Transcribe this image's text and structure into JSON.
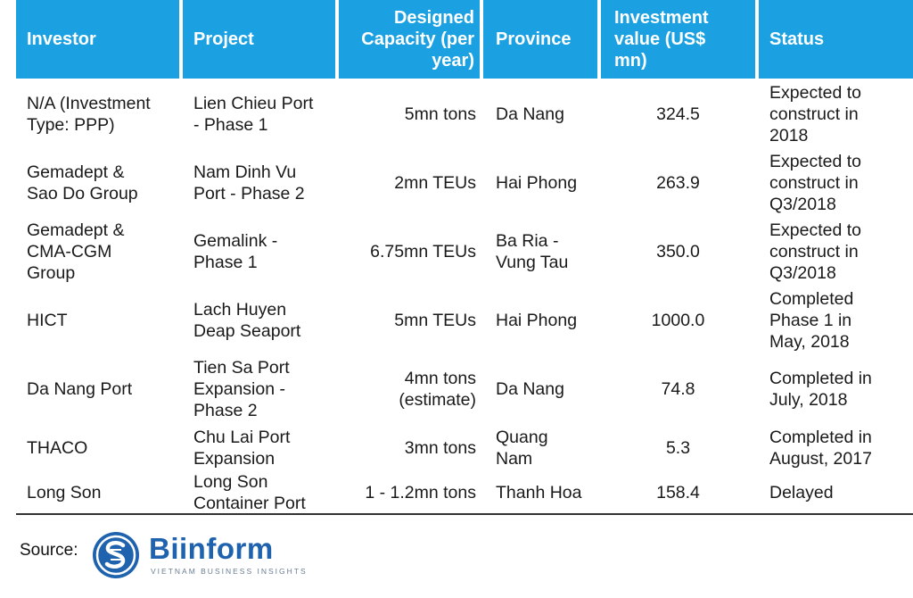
{
  "headers": {
    "investor": "Investor",
    "project": "Project",
    "capacity": [
      "Designed",
      "Capacity (per",
      "year)"
    ],
    "province": "Province",
    "value": [
      "Investment",
      "value (US$",
      "mn)"
    ],
    "status": "Status"
  },
  "rows": [
    {
      "investor": [
        "N/A (Investment",
        "Type: PPP)"
      ],
      "project": [
        "Lien Chieu Port",
        "- Phase 1"
      ],
      "capacity": [
        "5mn tons"
      ],
      "province": [
        "Da Nang"
      ],
      "value": "324.5",
      "status": [
        "Expected to",
        "construct in",
        "2018"
      ]
    },
    {
      "investor": [
        "Gemadept &",
        "Sao Do Group"
      ],
      "project": [
        "Nam Dinh Vu",
        "Port - Phase 2"
      ],
      "capacity": [
        "2mn TEUs"
      ],
      "province": [
        "Hai Phong"
      ],
      "value": "263.9",
      "status": [
        "Expected to",
        "construct in",
        "Q3/2018"
      ]
    },
    {
      "investor": [
        "Gemadept &",
        "CMA-CGM",
        "Group"
      ],
      "project": [
        "Gemalink -",
        "Phase 1"
      ],
      "capacity": [
        "6.75mn TEUs"
      ],
      "province": [
        "Ba Ria -",
        "Vung Tau"
      ],
      "value": "350.0",
      "status": [
        "Expected to",
        "construct in",
        "Q3/2018"
      ]
    },
    {
      "investor": [
        "HICT"
      ],
      "project": [
        "Lach Huyen",
        "Deap Seaport"
      ],
      "capacity": [
        "5mn TEUs"
      ],
      "province": [
        "Hai Phong"
      ],
      "value": "1000.0",
      "status": [
        "Completed",
        "Phase 1 in",
        "May, 2018"
      ]
    },
    {
      "investor": [
        "Da Nang Port"
      ],
      "project": [
        "Tien Sa Port",
        "Expansion -",
        "Phase 2"
      ],
      "capacity": [
        "4mn tons",
        "(estimate)"
      ],
      "province": [
        "Da Nang"
      ],
      "value": "74.8",
      "status": [
        "Completed in",
        "July, 2018"
      ]
    },
    {
      "investor": [
        "THACO"
      ],
      "project": [
        "Chu Lai Port",
        "Expansion"
      ],
      "capacity": [
        "3mn tons"
      ],
      "province": [
        "Quang",
        "Nam"
      ],
      "value": "5.3",
      "status": [
        "Completed in",
        "August, 2017"
      ]
    },
    {
      "investor": [
        "Long Son"
      ],
      "project": [
        "Long Son",
        "Container Port"
      ],
      "capacity": [
        "1 - 1.2mn tons"
      ],
      "province": [
        "Thanh Hoa"
      ],
      "value": "158.4",
      "status": [
        "Delayed"
      ]
    }
  ],
  "source": {
    "label": "Source:",
    "logo_name": "Biinform",
    "logo_tagline": "VIETNAM BUSINESS INSIGHTS",
    "logo_color": "#1f63ae"
  },
  "colors": {
    "header_bg": "#1ba1e2",
    "header_text": "#ffffff"
  }
}
